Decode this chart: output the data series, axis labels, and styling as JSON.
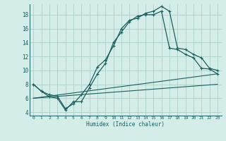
{
  "xlabel": "Humidex (Indice chaleur)",
  "bg_color": "#d4ede8",
  "grid_color": "#b0d4cc",
  "line_color": "#1a6060",
  "xlim": [
    -0.5,
    23.5
  ],
  "ylim": [
    3.5,
    19.5
  ],
  "xticks": [
    0,
    1,
    2,
    3,
    4,
    5,
    6,
    7,
    8,
    9,
    10,
    11,
    12,
    13,
    14,
    15,
    16,
    17,
    18,
    19,
    20,
    21,
    22,
    23
  ],
  "yticks": [
    4,
    6,
    8,
    10,
    12,
    14,
    16,
    18
  ],
  "curve1_x": [
    0,
    1,
    2,
    3,
    4,
    5,
    6,
    7,
    8,
    9,
    10,
    11,
    12,
    13,
    14,
    15,
    16,
    17,
    18,
    19,
    20,
    21,
    22,
    23
  ],
  "curve1_y": [
    8.0,
    7.0,
    6.5,
    6.3,
    4.5,
    5.2,
    6.5,
    8.0,
    10.5,
    11.5,
    13.5,
    16.0,
    17.2,
    17.5,
    18.2,
    18.5,
    19.2,
    18.5,
    13.2,
    13.0,
    12.3,
    11.8,
    10.3,
    10.0
  ],
  "curve2_x": [
    0,
    1,
    2,
    3,
    4,
    5,
    6,
    7,
    8,
    9,
    10,
    11,
    12,
    13,
    14,
    15,
    16,
    17,
    18,
    19,
    20,
    21,
    22,
    23
  ],
  "curve2_y": [
    8.0,
    7.0,
    6.2,
    6.0,
    4.3,
    5.5,
    5.5,
    7.5,
    9.5,
    11.0,
    14.0,
    15.5,
    17.0,
    17.8,
    18.0,
    18.0,
    18.5,
    13.2,
    13.0,
    12.3,
    11.8,
    10.3,
    10.2,
    9.5
  ],
  "line1_x": [
    0,
    23
  ],
  "line1_y": [
    6.0,
    9.5
  ],
  "line2_x": [
    0,
    23
  ],
  "line2_y": [
    6.0,
    8.0
  ]
}
